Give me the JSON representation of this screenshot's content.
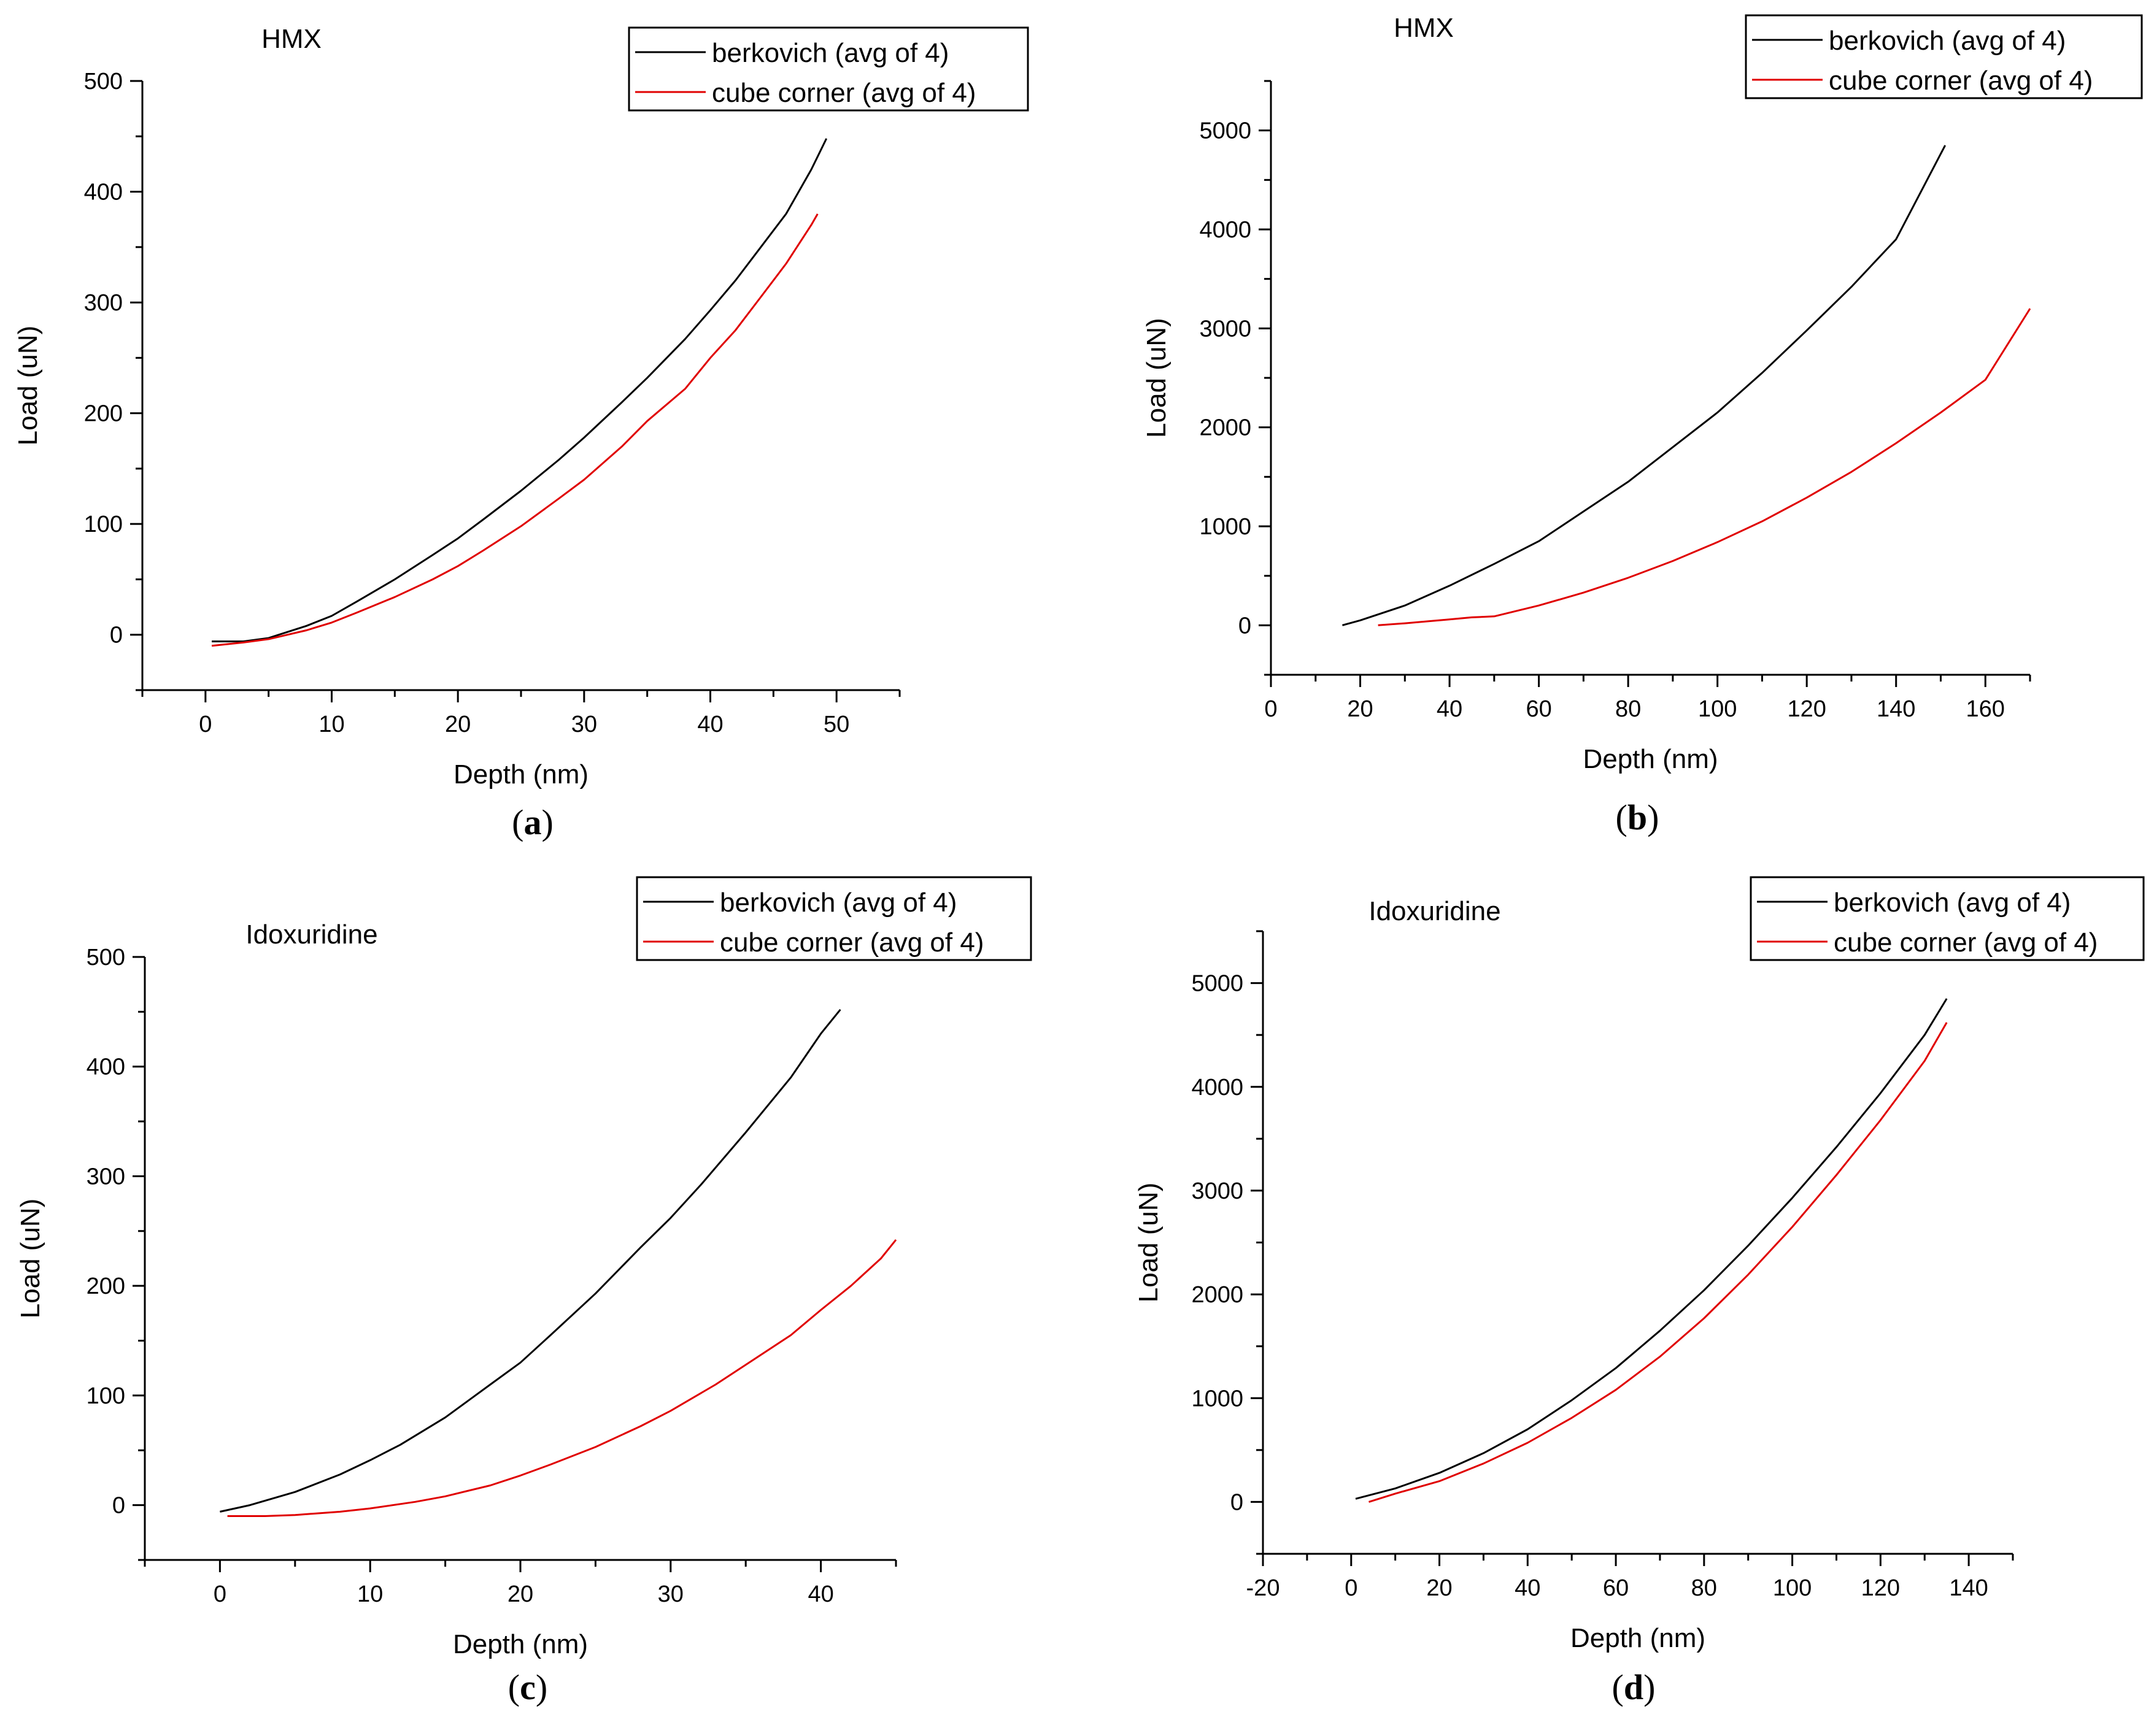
{
  "chart_data": [
    {
      "panel": "(a)",
      "panel_letter": "a",
      "type": "line",
      "title": "HMX",
      "xlabel": "Depth (nm)",
      "ylabel": "Load (uN)",
      "xlim": [
        -5,
        55
      ],
      "ylim": [
        -50,
        500
      ],
      "xticks": [
        0,
        10,
        20,
        30,
        40,
        50
      ],
      "yticks": [
        0,
        100,
        200,
        300,
        400,
        500
      ],
      "legend_position": "top-right",
      "series": [
        {
          "name": "berkovich (avg of 4)",
          "color": "#000000",
          "x": [
            0.5,
            3,
            5,
            8,
            10,
            12,
            15,
            18,
            20,
            22,
            25,
            28,
            30,
            33,
            35,
            38,
            40,
            42,
            44,
            46,
            48,
            49.2
          ],
          "y": [
            -6,
            -6,
            -3,
            8,
            17,
            30,
            50,
            72,
            87,
            104,
            130,
            158,
            178,
            210,
            232,
            267,
            293,
            320,
            350,
            380,
            420,
            448
          ]
        },
        {
          "name": "cube corner (avg of 4)",
          "color": "#e00000",
          "x": [
            0.5,
            3,
            5,
            8,
            10,
            12,
            15,
            18,
            20,
            22,
            25,
            28,
            30,
            33,
            35,
            38,
            40,
            42,
            44,
            46,
            48,
            48.5
          ],
          "y": [
            -10,
            -7,
            -4,
            4,
            11,
            20,
            34,
            50,
            62,
            76,
            98,
            123,
            140,
            170,
            193,
            222,
            250,
            275,
            305,
            335,
            370,
            380
          ]
        }
      ]
    },
    {
      "panel": "(b)",
      "panel_letter": "b",
      "type": "line",
      "title": "HMX",
      "xlabel": "Depth (nm)",
      "ylabel": "Load (uN)",
      "xlim": [
        0,
        170
      ],
      "ylim": [
        -500,
        5500
      ],
      "xticks": [
        0,
        20,
        40,
        60,
        80,
        100,
        120,
        140,
        160
      ],
      "yticks": [
        0,
        1000,
        2000,
        3000,
        4000,
        5000
      ],
      "legend_position": "top-right",
      "series": [
        {
          "name": "berkovich (avg of 4)",
          "color": "#000000",
          "x": [
            16,
            20,
            30,
            40,
            50,
            60,
            70,
            80,
            90,
            100,
            110,
            120,
            130,
            140,
            151
          ],
          "y": [
            0,
            50,
            200,
            400,
            620,
            850,
            1150,
            1450,
            1800,
            2150,
            2550,
            2980,
            3420,
            3900,
            4850
          ]
        },
        {
          "name": "cube corner (avg of 4)",
          "color": "#e00000",
          "x": [
            24,
            30,
            40,
            45,
            50,
            60,
            70,
            80,
            90,
            100,
            110,
            120,
            130,
            140,
            150,
            160,
            170
          ],
          "y": [
            0,
            20,
            60,
            80,
            90,
            200,
            330,
            480,
            650,
            840,
            1050,
            1290,
            1550,
            1840,
            2150,
            2480,
            3200
          ]
        }
      ]
    },
    {
      "panel": "(c)",
      "panel_letter": "c",
      "type": "line",
      "title": "Idoxuridine",
      "xlabel": "Depth (nm)",
      "ylabel": "Load (uN)",
      "xlim": [
        -5,
        45
      ],
      "ylim": [
        -50,
        500
      ],
      "xticks": [
        0,
        10,
        20,
        30,
        40
      ],
      "yticks": [
        0,
        100,
        200,
        300,
        400,
        500
      ],
      "legend_position": "top-right",
      "series": [
        {
          "name": "berkovich (avg of 4)",
          "color": "#000000",
          "x": [
            0,
            2,
            5,
            8,
            10,
            12,
            15,
            18,
            20,
            22,
            25,
            28,
            30,
            32,
            35,
            38,
            40,
            41.3
          ],
          "y": [
            -6,
            0,
            12,
            28,
            41,
            55,
            80,
            110,
            130,
            155,
            193,
            235,
            262,
            292,
            340,
            390,
            430,
            452
          ]
        },
        {
          "name": "cube corner (avg of 4)",
          "color": "#e00000",
          "x": [
            0.5,
            3,
            5,
            8,
            10,
            13,
            15,
            18,
            20,
            22,
            25,
            28,
            30,
            33,
            35,
            38,
            40,
            42,
            44,
            45
          ],
          "y": [
            -10,
            -10,
            -9,
            -6,
            -3,
            3,
            8,
            18,
            27,
            37,
            53,
            72,
            86,
            110,
            128,
            155,
            178,
            200,
            225,
            242
          ]
        }
      ]
    },
    {
      "panel": "(d)",
      "panel_letter": "d",
      "type": "line",
      "title": "Idoxuridine",
      "xlabel": "Depth (nm)",
      "ylabel": "Load (uN)",
      "xlim": [
        -20,
        150
      ],
      "ylim": [
        -500,
        5500
      ],
      "xticks": [
        -20,
        0,
        20,
        40,
        60,
        80,
        100,
        120,
        140
      ],
      "yticks": [
        0,
        1000,
        2000,
        3000,
        4000,
        5000
      ],
      "legend_position": "top-right",
      "series": [
        {
          "name": "berkovich (avg of 4)",
          "color": "#000000",
          "x": [
            1,
            10,
            20,
            30,
            40,
            50,
            60,
            70,
            80,
            90,
            100,
            110,
            120,
            130,
            135
          ],
          "y": [
            30,
            130,
            280,
            470,
            700,
            980,
            1290,
            1650,
            2040,
            2470,
            2930,
            3420,
            3940,
            4500,
            4850
          ]
        },
        {
          "name": "cube corner (avg of 4)",
          "color": "#e00000",
          "x": [
            4,
            10,
            20,
            30,
            40,
            50,
            60,
            70,
            80,
            90,
            100,
            110,
            120,
            130,
            135
          ],
          "y": [
            0,
            80,
            200,
            370,
            570,
            810,
            1080,
            1400,
            1770,
            2190,
            2650,
            3150,
            3680,
            4250,
            4620
          ]
        }
      ]
    }
  ]
}
